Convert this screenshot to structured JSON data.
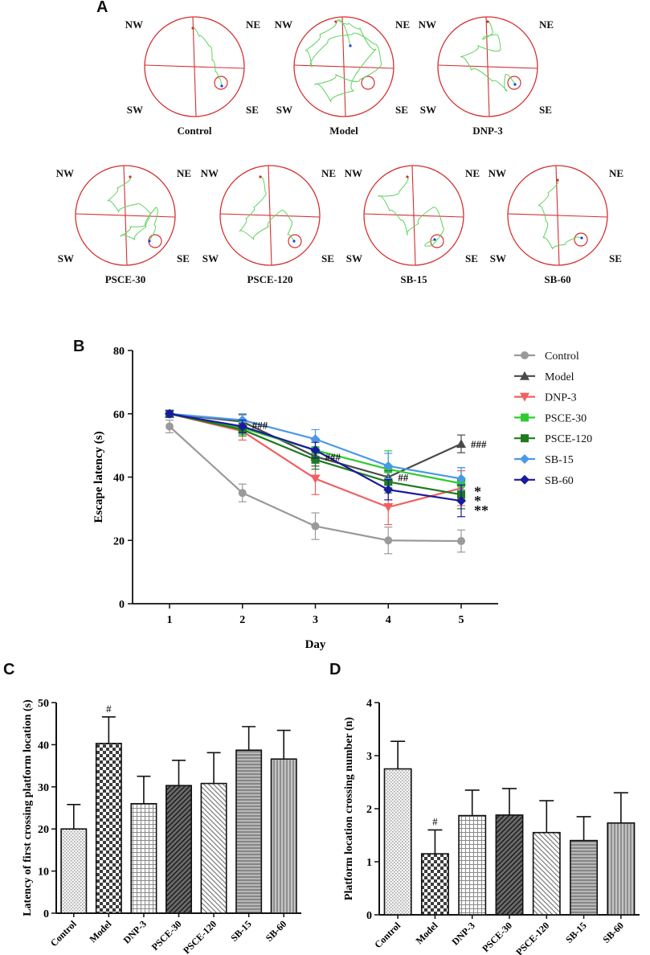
{
  "panels": {
    "a_label": "A",
    "b_label": "B",
    "c_label": "C",
    "d_label": "D"
  },
  "maze": {
    "quadrants": {
      "nw": "NW",
      "ne": "NE",
      "sw": "SW",
      "se": "SE"
    },
    "groups": [
      "Control",
      "Model",
      "DNP-3",
      "PSCE-30",
      "PSCE-120",
      "SB-15",
      "SB-60"
    ],
    "colors": {
      "circle": "#d32f2f",
      "path": "#5fd35f",
      "start": "#c0392b",
      "end": "#1e3fd6"
    }
  },
  "chart_data": [
    {
      "id": "B",
      "type": "line",
      "title": "",
      "xlabel": "Day",
      "ylabel": "Escape latency (s)",
      "x": [
        1,
        2,
        3,
        4,
        5
      ],
      "xticks": [
        "1",
        "2",
        "3",
        "4",
        "5"
      ],
      "ylim": [
        0,
        80
      ],
      "yticks": [
        "0",
        "20",
        "40",
        "60",
        "80"
      ],
      "legend_position": "top-right",
      "series": [
        {
          "name": "Control",
          "color": "#9a9a9a",
          "marker": "circle",
          "values": [
            56,
            35,
            24.5,
            20,
            19.8
          ],
          "errors": [
            2,
            2.8,
            4.2,
            4.2,
            3.5
          ]
        },
        {
          "name": "Model",
          "color": "#4a4a4a",
          "marker": "triangle-up",
          "values": [
            60,
            57.5,
            46.5,
            40,
            50.5
          ],
          "errors": [
            1,
            2.2,
            3,
            3.5,
            2.8
          ]
        },
        {
          "name": "DNP-3",
          "color": "#f06060",
          "marker": "triangle-down",
          "values": [
            60,
            54.5,
            39.5,
            30.5,
            36.5
          ],
          "errors": [
            1,
            2.8,
            5,
            5.5,
            5.5
          ]
        },
        {
          "name": "PSCE-30",
          "color": "#2ecc2e",
          "marker": "square",
          "values": [
            60,
            55.5,
            48.5,
            42.5,
            38
          ],
          "errors": [
            1,
            2,
            3,
            5.8,
            5
          ]
        },
        {
          "name": "PSCE-120",
          "color": "#1f7a1f",
          "marker": "square",
          "values": [
            60,
            55,
            45.5,
            38.5,
            34.5
          ],
          "errors": [
            1,
            2,
            3,
            3.5,
            4.5
          ]
        },
        {
          "name": "SB-15",
          "color": "#4b98e6",
          "marker": "diamond",
          "values": [
            60,
            58,
            52,
            43.5,
            39.5
          ],
          "errors": [
            1,
            2,
            3,
            4,
            3.5
          ]
        },
        {
          "name": "SB-60",
          "color": "#1a1a9e",
          "marker": "diamond",
          "values": [
            60,
            56,
            48.5,
            36,
            32.5
          ],
          "errors": [
            1,
            2,
            2.5,
            3.2,
            5
          ]
        }
      ],
      "annotations": [
        {
          "text": "###",
          "x": 2,
          "y": 56.5
        },
        {
          "text": "###",
          "x": 3,
          "y": 46.5
        },
        {
          "text": "##",
          "x": 4,
          "y": 40
        },
        {
          "text": "###",
          "x": 5,
          "y": 50.5
        },
        {
          "text": "*",
          "x": 5,
          "y": 36.5
        },
        {
          "text": "*",
          "x": 5,
          "y": 33.5
        },
        {
          "text": "**",
          "x": 5,
          "y": 30.5
        }
      ]
    },
    {
      "id": "C",
      "type": "bar",
      "title": "",
      "xlabel": "",
      "ylabel": "Latency of first crossing platform location (s)",
      "categories": [
        "Control",
        "Model",
        "DNP-3",
        "PSCE-30",
        "PSCE-120",
        "SB-15",
        "SB-60"
      ],
      "values": [
        20,
        40.3,
        26,
        30.3,
        30.8,
        38.7,
        36.6
      ],
      "errors": [
        5.8,
        6.3,
        6.5,
        6,
        7.3,
        5.6,
        6.8
      ],
      "ylim": [
        0,
        50
      ],
      "yticks": [
        "0",
        "10",
        "20",
        "30",
        "40",
        "50"
      ],
      "patterns": [
        "dots",
        "checker",
        "grid",
        "diag-dark",
        "diag-light",
        "hlines",
        "vlines"
      ],
      "annotations": [
        {
          "text": "#",
          "category": "Model"
        }
      ]
    },
    {
      "id": "D",
      "type": "bar",
      "title": "",
      "xlabel": "",
      "ylabel": "Platform location crossing number (n)",
      "categories": [
        "Control",
        "Model",
        "DNP-3",
        "PSCE-30",
        "PSCE-120",
        "SB-15",
        "SB-60"
      ],
      "values": [
        2.75,
        1.15,
        1.87,
        1.88,
        1.55,
        1.4,
        1.73
      ],
      "errors": [
        0.52,
        0.45,
        0.48,
        0.5,
        0.6,
        0.45,
        0.57
      ],
      "ylim": [
        0,
        4
      ],
      "yticks": [
        "0",
        "1",
        "2",
        "3",
        "4"
      ],
      "patterns": [
        "dots",
        "checker",
        "grid",
        "diag-dark",
        "diag-light",
        "hlines",
        "vlines"
      ],
      "annotations": [
        {
          "text": "#",
          "category": "Model"
        }
      ]
    }
  ]
}
